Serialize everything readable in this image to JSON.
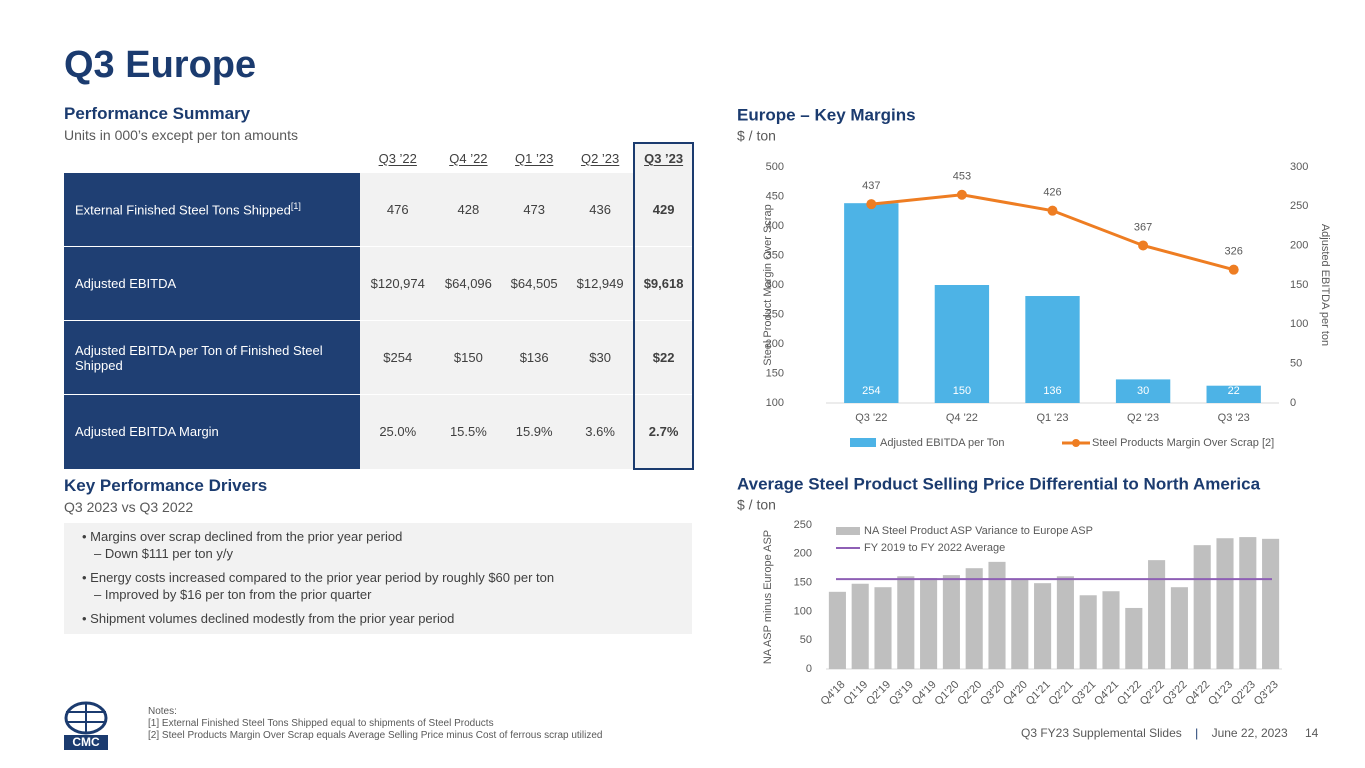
{
  "title": "Q3 Europe",
  "summary": {
    "title": "Performance Summary",
    "subtitle": "Units in 000’s except per ton amounts",
    "columns": [
      "Q3 ’22",
      "Q4 ’22",
      "Q1 ’23",
      "Q2 ’23",
      "Q3 ’23"
    ],
    "rows": [
      {
        "label": "External Finished Steel Tons Shipped",
        "note": "[1]",
        "values": [
          "476",
          "428",
          "473",
          "436",
          "429"
        ]
      },
      {
        "label": "Adjusted EBITDA",
        "values": [
          "$120,974",
          "$64,096",
          "$64,505",
          "$12,949",
          "$9,618"
        ]
      },
      {
        "label": "Adjusted EBITDA per Ton of Finished Steel Shipped",
        "values": [
          "$254",
          "$150",
          "$136",
          "$30",
          "$22"
        ]
      },
      {
        "label": "Adjusted EBITDA Margin",
        "values": [
          "25.0%",
          "15.5%",
          "15.9%",
          "3.6%",
          "2.7%"
        ]
      }
    ]
  },
  "drivers": {
    "title": "Key Performance Drivers",
    "subtitle": "Q3 2023 vs Q3 2022",
    "bullets": [
      {
        "text": "Margins over scrap declined from the prior year period",
        "sub": "Down $111 per ton y/y"
      },
      {
        "text": "Energy costs increased compared to the prior year period by roughly $60 per ton",
        "sub": "Improved by $16 per ton from the prior quarter"
      },
      {
        "text": "Shipment volumes declined modestly from the prior year period"
      }
    ]
  },
  "chart_data": [
    {
      "type": "combo",
      "title": "Europe – Key Margins",
      "subtitle": "$ / ton",
      "ylabel": "Steel Product Margin Over Scrap",
      "y2label": "Adjusted EBITDA per ton",
      "categories": [
        "Q3 '22",
        "Q4 '22",
        "Q1 '23",
        "Q2 '23",
        "Q3 '23"
      ],
      "series": [
        {
          "name": "Adjusted EBITDA per Ton",
          "type": "bar",
          "axis": "y2",
          "color": "#4db3e6",
          "values": [
            254,
            150,
            136,
            30,
            22
          ]
        },
        {
          "name": "Steel Products Margin Over Scrap [2]",
          "type": "line",
          "color": "#ee7d22",
          "values": [
            437,
            453,
            426,
            367,
            326
          ]
        }
      ],
      "ylim": [
        100,
        500
      ],
      "yticks": [
        100,
        150,
        200,
        250,
        300,
        350,
        400,
        450,
        500
      ],
      "y2lim": [
        0,
        300
      ],
      "y2ticks": [
        0,
        50,
        100,
        150,
        200,
        250,
        300
      ],
      "grid": false
    },
    {
      "type": "bar",
      "title": "Average Steel Product Selling Price Differential to North America",
      "subtitle": "$ / ton",
      "ylabel": "NA ASP minus Europe ASP",
      "categories": [
        "Q4'18",
        "Q1'19",
        "Q2'19",
        "Q3'19",
        "Q4'19",
        "Q1'20",
        "Q2'20",
        "Q3'20",
        "Q4'20",
        "Q1'21",
        "Q2'21",
        "Q3'21",
        "Q4'21",
        "Q1'22",
        "Q2'22",
        "Q3'22",
        "Q4'22",
        "Q1'23",
        "Q2'23",
        "Q3'23"
      ],
      "series": [
        {
          "name": "NA Steel Product ASP Variance to Europe ASP",
          "type": "bar",
          "color": "#bfbfbf",
          "values": [
            134,
            148,
            142,
            161,
            158,
            163,
            175,
            186,
            156,
            149,
            161,
            128,
            135,
            106,
            189,
            142,
            215,
            227,
            229,
            226
          ]
        }
      ],
      "reference": {
        "name": "FY 2019 to FY 2022 Average",
        "value": 156,
        "color": "#8e5fb5"
      },
      "ylim": [
        0,
        250
      ],
      "yticks": [
        0,
        50,
        100,
        150,
        200,
        250
      ],
      "grid": false
    }
  ],
  "notes": {
    "title": "Notes:",
    "items": [
      "[1]  External Finished Steel Tons Shipped equal to shipments of Steel Products",
      "[2]  Steel Products Margin Over Scrap equals Average Selling Price minus Cost of ferrous scrap utilized"
    ]
  },
  "logo": "CMC",
  "footer": {
    "deck": "Q3 FY23 Supplemental Slides",
    "date": "June 22, 2023",
    "page": "14"
  }
}
